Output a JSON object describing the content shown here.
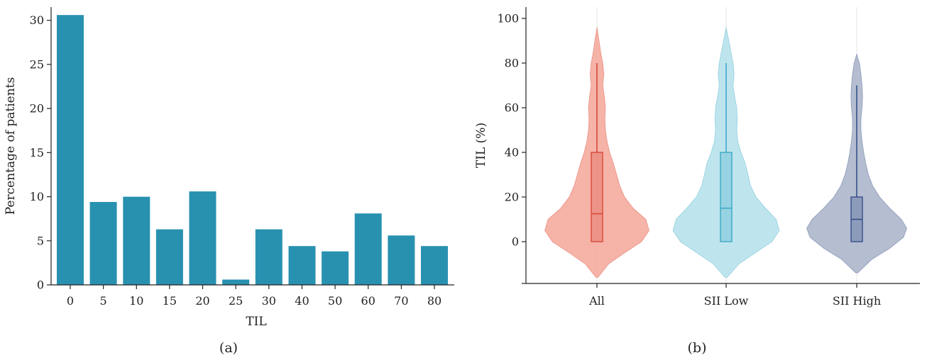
{
  "panels": {
    "a_label": "(a)",
    "b_label": "(b)"
  },
  "chart_data": [
    {
      "id": "a",
      "type": "bar",
      "xlabel": "TIL",
      "ylabel": "Percentage of patients",
      "categories": [
        "0",
        "5",
        "10",
        "15",
        "20",
        "25",
        "30",
        "40",
        "50",
        "60",
        "70",
        "80"
      ],
      "values": [
        30.6,
        9.4,
        10.0,
        6.3,
        10.6,
        0.6,
        6.3,
        4.4,
        3.8,
        8.1,
        5.6,
        4.4
      ],
      "ylim": [
        0,
        31.5
      ],
      "yticks": [
        0,
        5,
        10,
        15,
        20,
        25,
        30
      ],
      "grid": false,
      "bar_color": "#2891b0"
    },
    {
      "id": "b",
      "type": "violin",
      "xlabel": "",
      "ylabel": "TIL (%)",
      "categories": [
        "All",
        "SII Low",
        "SII High"
      ],
      "ylim": [
        -20,
        105
      ],
      "yticks": [
        0,
        20,
        40,
        60,
        80,
        100
      ],
      "grid": false,
      "series": [
        {
          "category": "All",
          "fill": "#f4a699",
          "stroke": "#d64a3a",
          "box": {
            "q1": 0,
            "median": 12.5,
            "q3": 40,
            "whisker_low": 0,
            "whisker_high": 80
          },
          "extent": [
            -16,
            96
          ],
          "profile": [
            [
              -16,
              0.02
            ],
            [
              -10,
              0.22
            ],
            [
              -5,
              0.52
            ],
            [
              0,
              0.84
            ],
            [
              5,
              0.98
            ],
            [
              10,
              0.92
            ],
            [
              15,
              0.68
            ],
            [
              20,
              0.52
            ],
            [
              25,
              0.43
            ],
            [
              30,
              0.37
            ],
            [
              35,
              0.31
            ],
            [
              40,
              0.24
            ],
            [
              45,
              0.19
            ],
            [
              50,
              0.16
            ],
            [
              55,
              0.15
            ],
            [
              60,
              0.16
            ],
            [
              65,
              0.14
            ],
            [
              70,
              0.11
            ],
            [
              75,
              0.13
            ],
            [
              80,
              0.11
            ],
            [
              85,
              0.07
            ],
            [
              90,
              0.04
            ],
            [
              96,
              0.0
            ]
          ]
        },
        {
          "category": "SII Low",
          "fill": "#b3e1eb",
          "stroke": "#3fa8c6",
          "box": {
            "q1": 0,
            "median": 15,
            "q3": 40,
            "whisker_low": 0,
            "whisker_high": 80
          },
          "extent": [
            -16,
            96
          ],
          "profile": [
            [
              -16,
              0.02
            ],
            [
              -10,
              0.24
            ],
            [
              -5,
              0.55
            ],
            [
              0,
              0.86
            ],
            [
              5,
              1.0
            ],
            [
              10,
              0.94
            ],
            [
              15,
              0.74
            ],
            [
              20,
              0.56
            ],
            [
              25,
              0.46
            ],
            [
              30,
              0.41
            ],
            [
              35,
              0.36
            ],
            [
              40,
              0.28
            ],
            [
              45,
              0.22
            ],
            [
              50,
              0.2
            ],
            [
              55,
              0.21
            ],
            [
              60,
              0.2
            ],
            [
              65,
              0.16
            ],
            [
              70,
              0.13
            ],
            [
              75,
              0.15
            ],
            [
              80,
              0.13
            ],
            [
              85,
              0.09
            ],
            [
              90,
              0.05
            ],
            [
              96,
              0.0
            ]
          ]
        },
        {
          "category": "SII High",
          "fill": "#a8b2c8",
          "stroke": "#34508a",
          "box": {
            "q1": 0,
            "median": 10,
            "q3": 20,
            "whisker_low": 0,
            "whisker_high": 70
          },
          "extent": [
            -14,
            84
          ],
          "profile": [
            [
              -14,
              0.02
            ],
            [
              -8,
              0.28
            ],
            [
              -3,
              0.62
            ],
            [
              2,
              0.88
            ],
            [
              6,
              0.94
            ],
            [
              10,
              0.84
            ],
            [
              15,
              0.62
            ],
            [
              20,
              0.43
            ],
            [
              25,
              0.3
            ],
            [
              30,
              0.22
            ],
            [
              35,
              0.17
            ],
            [
              40,
              0.13
            ],
            [
              45,
              0.1
            ],
            [
              50,
              0.08
            ],
            [
              55,
              0.08
            ],
            [
              60,
              0.1
            ],
            [
              65,
              0.11
            ],
            [
              70,
              0.1
            ],
            [
              75,
              0.08
            ],
            [
              80,
              0.05
            ],
            [
              84,
              0.0
            ]
          ]
        }
      ]
    }
  ]
}
